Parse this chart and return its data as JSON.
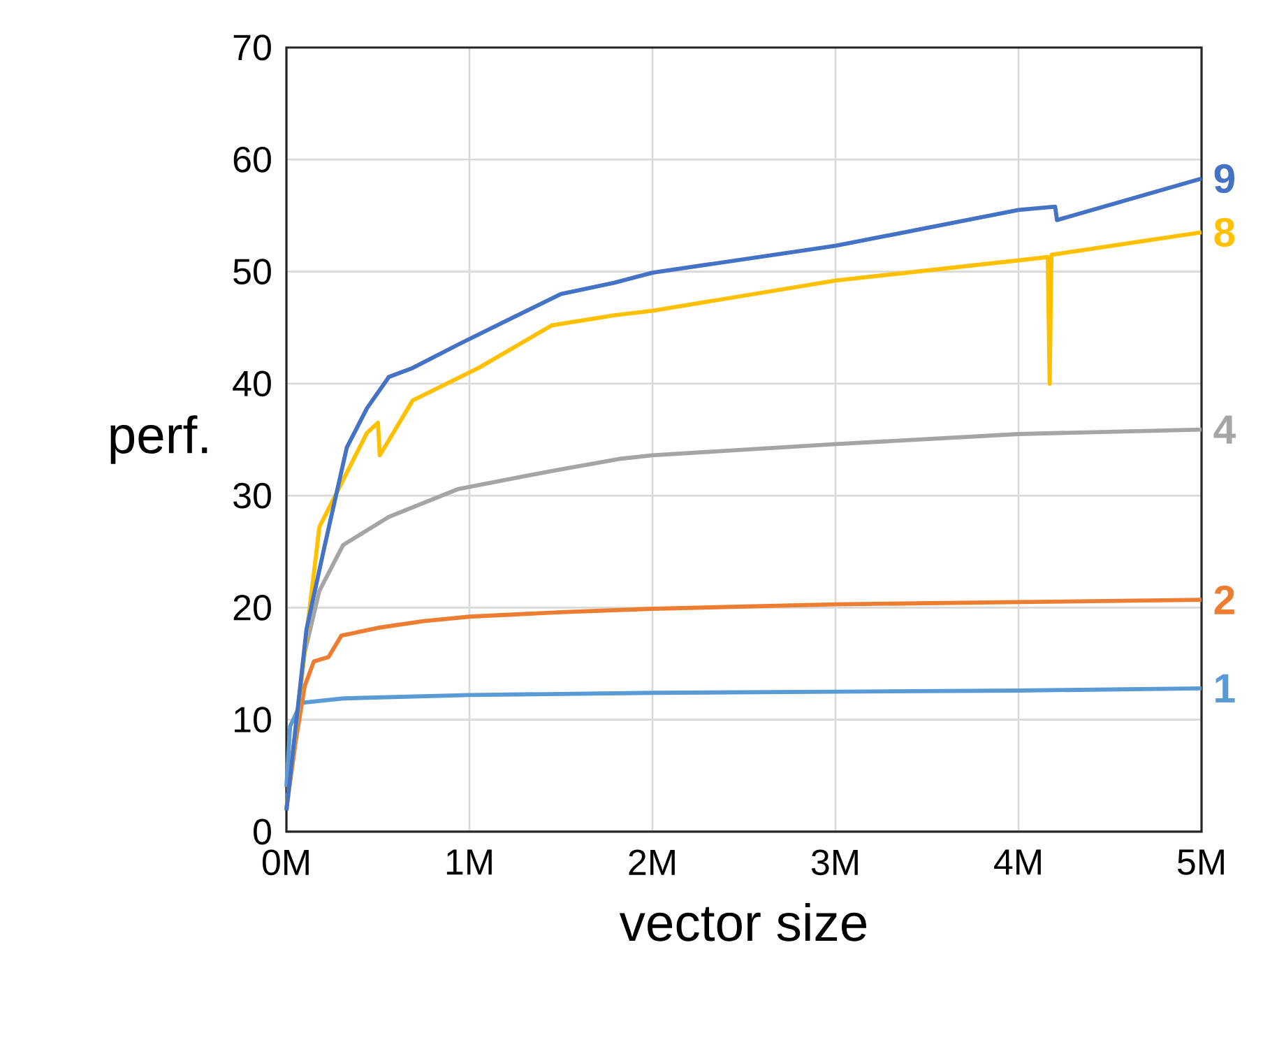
{
  "chart_data": {
    "type": "line",
    "xlabel": "vector size",
    "ylabel": "perf.",
    "xlim": [
      0,
      5
    ],
    "ylim": [
      0,
      70
    ],
    "xticks": [
      {
        "value": 0,
        "label": "0M"
      },
      {
        "value": 1,
        "label": "1M"
      },
      {
        "value": 2,
        "label": "2M"
      },
      {
        "value": 3,
        "label": "3M"
      },
      {
        "value": 4,
        "label": "4M"
      },
      {
        "value": 5,
        "label": "5M"
      }
    ],
    "yticks": [
      0,
      10,
      20,
      30,
      40,
      50,
      60,
      70
    ],
    "grid": true,
    "legend": false,
    "marker": "none",
    "line_style": "solid",
    "series": [
      {
        "name": "1",
        "color": "#5b9bd5",
        "x": [
          0,
          0.02,
          0.08,
          0.31,
          1,
          2,
          3,
          4,
          5
        ],
        "values": [
          4,
          9.4,
          11.5,
          11.9,
          12.2,
          12.4,
          12.5,
          12.6,
          12.8
        ]
      },
      {
        "name": "2",
        "color": "#ed7d31",
        "x": [
          0,
          0.05,
          0.1,
          0.15,
          0.23,
          0.3,
          0.5,
          0.75,
          1,
          1.5,
          2,
          3,
          4,
          5
        ],
        "values": [
          2,
          8,
          13,
          15.2,
          15.6,
          17.5,
          18.2,
          18.8,
          19.2,
          19.6,
          19.9,
          20.3,
          20.5,
          20.7
        ]
      },
      {
        "name": "4",
        "color": "#a5a5a5",
        "x": [
          0,
          0.1,
          0.18,
          0.31,
          0.56,
          0.94,
          1.45,
          1.83,
          2,
          3,
          4,
          5
        ],
        "values": [
          2,
          16,
          21.5,
          25.6,
          28.1,
          30.6,
          32.2,
          33.3,
          33.6,
          34.6,
          35.5,
          35.9
        ]
      },
      {
        "name": "8",
        "color": "#ffc000",
        "x": [
          0,
          0.11,
          0.18,
          0.31,
          0.44,
          0.5,
          0.51,
          0.69,
          1.05,
          1.45,
          1.79,
          2,
          3,
          4,
          4.16,
          4.17,
          4.18,
          5
        ],
        "values": [
          2,
          17.6,
          27.2,
          31.4,
          35.6,
          36.5,
          33.6,
          38.5,
          41.4,
          45.2,
          46.1,
          46.5,
          49.2,
          51,
          51.3,
          40,
          51.5,
          53.5
        ]
      },
      {
        "name": "9",
        "color": "#4472c4",
        "x": [
          0,
          0.11,
          0.21,
          0.33,
          0.44,
          0.56,
          0.69,
          0.94,
          1.2,
          1.5,
          1.79,
          2,
          3,
          4,
          4.2,
          4.21,
          5
        ],
        "values": [
          1.9,
          18.1,
          25.6,
          34.3,
          37.8,
          40.6,
          41.4,
          43.5,
          45.6,
          48,
          49,
          49.9,
          52.3,
          55.5,
          55.8,
          54.6,
          58.3
        ]
      }
    ]
  }
}
